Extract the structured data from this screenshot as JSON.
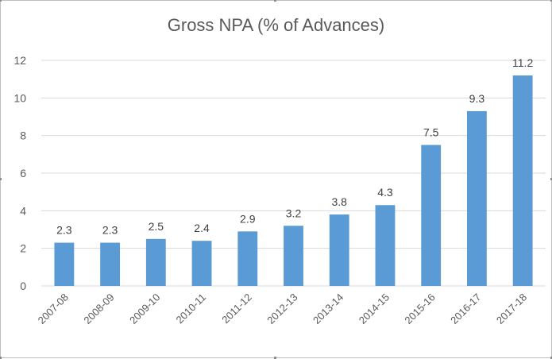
{
  "chart_data": {
    "type": "bar",
    "title": "Gross NPA (% of Advances)",
    "categories": [
      "2007-08",
      "2008-09",
      "2009-10",
      "2010-11",
      "2011-12",
      "2012-13",
      "2013-14",
      "2014-15",
      "2015-16",
      "2016-17",
      "2017-18"
    ],
    "values": [
      2.3,
      2.3,
      2.5,
      2.4,
      2.9,
      3.2,
      3.8,
      4.3,
      7.5,
      9.3,
      11.2
    ],
    "data_labels": [
      "2.3",
      "2.3",
      "2.5",
      "2.4",
      "2.9",
      "3.2",
      "3.8",
      "4.3",
      "7.5",
      "9.3",
      "11.2"
    ],
    "y_ticks": [
      "0",
      "2",
      "4",
      "6",
      "8",
      "10",
      "12"
    ],
    "ylim": [
      0,
      12
    ],
    "xlabel": "",
    "ylabel": "",
    "grid": true,
    "legend": "none",
    "bar_color": "#5b9bd5",
    "grid_color": "#d9d9d9"
  }
}
